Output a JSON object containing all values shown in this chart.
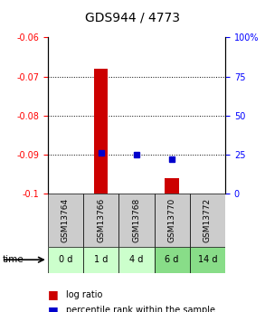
{
  "title": "GDS944 / 4773",
  "samples": [
    "GSM13764",
    "GSM13766",
    "GSM13768",
    "GSM13770",
    "GSM13772"
  ],
  "time_labels": [
    "0 d",
    "1 d",
    "4 d",
    "6 d",
    "14 d"
  ],
  "x_positions": [
    0,
    1,
    2,
    3,
    4
  ],
  "log_ratio": [
    null,
    -0.068,
    null,
    -0.096,
    null
  ],
  "percentile_rank": [
    null,
    26,
    25,
    22,
    null
  ],
  "ylim_left": [
    -0.1,
    -0.06
  ],
  "ylim_right": [
    0,
    100
  ],
  "left_ticks": [
    -0.1,
    -0.09,
    -0.08,
    -0.07,
    -0.06
  ],
  "right_ticks": [
    0,
    25,
    50,
    75,
    100
  ],
  "left_tick_labels": [
    "-0.1",
    "-0.09",
    "-0.08",
    "-0.07",
    "-0.06"
  ],
  "right_tick_labels": [
    "0",
    "25",
    "50",
    "75",
    "100%"
  ],
  "bar_color": "#cc0000",
  "dot_color": "#0000cc",
  "sample_bg_color": "#cccccc",
  "time_bg_colors": [
    "#ccffcc",
    "#ccffcc",
    "#ccffcc",
    "#88dd88",
    "#88dd88"
  ],
  "bar_width": 0.4,
  "bar_bottom": -0.1
}
